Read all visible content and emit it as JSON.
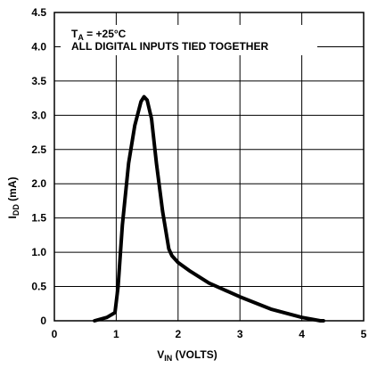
{
  "chart_data": {
    "type": "line",
    "xlim": [
      0,
      5
    ],
    "ylim": [
      0,
      4.5
    ],
    "x_ticks": [
      "0",
      "1",
      "2",
      "3",
      "4",
      "5"
    ],
    "y_ticks": [
      "0",
      "0.5",
      "1.0",
      "1.5",
      "2.0",
      "2.5",
      "3.0",
      "3.5",
      "4.0",
      "4.5"
    ],
    "x_tick_values": [
      0,
      1,
      2,
      3,
      4,
      5
    ],
    "y_tick_values": [
      0,
      0.5,
      1.0,
      1.5,
      2.0,
      2.5,
      3.0,
      3.5,
      4.0,
      4.5
    ],
    "xlabel": {
      "main": "V",
      "sub": "IN",
      "rest": " (VOLTS)"
    },
    "ylabel": {
      "main": "I",
      "sub": "DD",
      "rest": " (mA)"
    },
    "annotation": {
      "line1": {
        "main": "T",
        "sub": "A",
        "rest": " = +25°C"
      },
      "line2": "ALL DIGITAL INPUTS TIED TOGETHER"
    },
    "grid": true,
    "series": [
      {
        "x": [
          0.65,
          0.85,
          0.98,
          1.03,
          1.1,
          1.2,
          1.3,
          1.4,
          1.45,
          1.5,
          1.57,
          1.65,
          1.75,
          1.85,
          1.9,
          2.0,
          2.2,
          2.5,
          3.0,
          3.5,
          4.0,
          4.3,
          4.35
        ],
        "y": [
          0.0,
          0.05,
          0.12,
          0.5,
          1.4,
          2.3,
          2.85,
          3.2,
          3.27,
          3.22,
          2.95,
          2.3,
          1.6,
          1.05,
          0.95,
          0.85,
          0.72,
          0.55,
          0.35,
          0.17,
          0.05,
          0.0,
          0.0
        ]
      }
    ]
  }
}
